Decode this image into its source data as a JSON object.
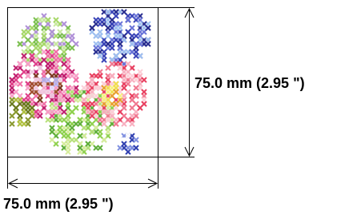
{
  "dimensions": {
    "height_label": "75.0 mm (2.95 \")",
    "width_label": "75.0 mm (2.95 \")"
  }
}
